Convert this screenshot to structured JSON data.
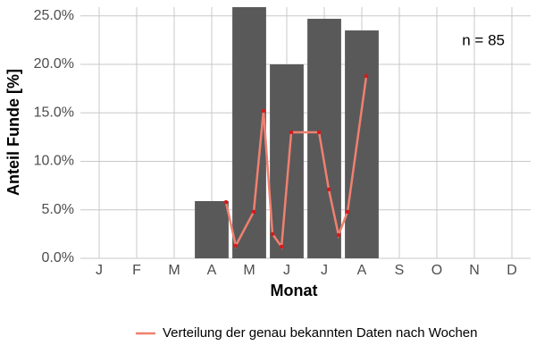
{
  "chart_data": {
    "type": "bar",
    "categories": [
      "J",
      "F",
      "M",
      "A",
      "M",
      "J",
      "J",
      "A",
      "S",
      "O",
      "N",
      "D"
    ],
    "values": [
      null,
      null,
      null,
      5.9,
      25.9,
      20.0,
      24.7,
      23.5,
      null,
      null,
      null,
      null
    ],
    "color": "#595959",
    "x_label": "Monat",
    "y_label": "Anteil Funde [%]",
    "ylim": [
      0,
      25.9
    ],
    "yticks": [
      {
        "value": 0,
        "label": "0.0%"
      },
      {
        "value": 5,
        "label": "5.0%"
      },
      {
        "value": 10,
        "label": "10.0%"
      },
      {
        "value": 15,
        "label": "15.0%"
      },
      {
        "value": 20,
        "label": "20.0%"
      },
      {
        "value": 25,
        "label": "25.0%"
      }
    ],
    "grid": true,
    "annotation": "n = 85",
    "series": [
      {
        "name": "Verteilung der genau bekannten Daten nach Wochen",
        "color": "#f08070",
        "point_color": "#d7191c",
        "x": [
          3.38,
          3.64,
          4.12,
          4.38,
          4.62,
          4.86,
          5.12,
          5.86,
          6.12,
          6.38,
          6.62,
          7.12
        ],
        "values": [
          5.8,
          1.3,
          4.8,
          15.2,
          2.5,
          1.2,
          13.0,
          13.0,
          7.1,
          2.4,
          4.8,
          18.8
        ]
      }
    ],
    "legend": "bottom"
  }
}
